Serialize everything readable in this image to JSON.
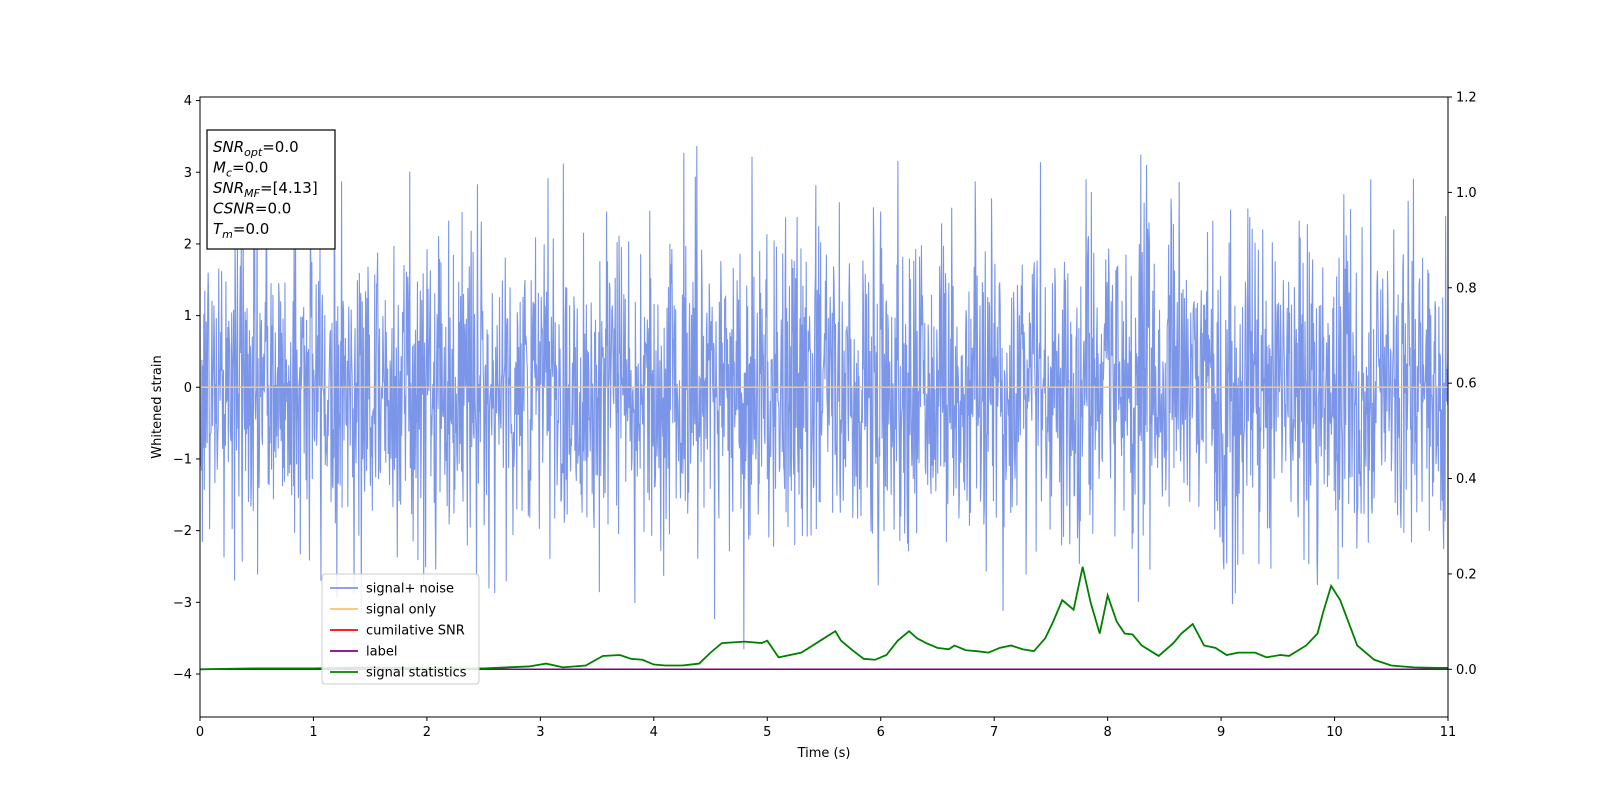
{
  "chart_data": {
    "type": "line",
    "xlabel": "Time (s)",
    "ylabel": "Whitened strain",
    "xlim": [
      0,
      11
    ],
    "ylim_left": [
      -4.6,
      4.05
    ],
    "ylim_right": [
      -0.1,
      1.2
    ],
    "xticks": [
      "0",
      "1",
      "2",
      "3",
      "4",
      "5",
      "6",
      "7",
      "8",
      "9",
      "10",
      "11"
    ],
    "yticks_left": [
      "4",
      "3",
      "2",
      "1",
      "0",
      "−1",
      "−2",
      "−3",
      "−4"
    ],
    "yticks_right": [
      "1.2",
      "1.0",
      "0.8",
      "0.6",
      "0.4",
      "0.2",
      "0.0"
    ],
    "grid": false,
    "legend_location": "lower-left",
    "legend": [
      {
        "label": "signal+ noise",
        "color": "#7b96e8"
      },
      {
        "label": "signal only",
        "color": "#f7c27a"
      },
      {
        "label": "cumilative SNR",
        "color": "#ff0000"
      },
      {
        "label": "label",
        "color": "#800080"
      },
      {
        "label": "signal statistics",
        "color": "#008000"
      }
    ],
    "annotation_lines": [
      {
        "name": "SNR",
        "sub": "opt",
        "value": "=0.0"
      },
      {
        "name": "M",
        "sub": "c",
        "value": "=0.0"
      },
      {
        "name": "SNR",
        "sub": "MF",
        "value": "=[4.13]"
      },
      {
        "name": "CSNR",
        "sub": "",
        "value": "=0.0"
      },
      {
        "name": "T",
        "sub": "m",
        "value": "=0.0"
      }
    ],
    "series": [
      {
        "name": "signal+ noise",
        "axis": "left",
        "color": "#7b96e8",
        "kind": "noise",
        "typical_range": [
          -2.0,
          2.0
        ],
        "max": 3.6,
        "min": -4.15
      },
      {
        "name": "signal only",
        "axis": "left",
        "color": "#f7c27a",
        "x": [
          0,
          11
        ],
        "y": [
          0,
          0
        ]
      },
      {
        "name": "cumilative SNR",
        "axis": "right",
        "color": "#ff0000",
        "x": [
          0,
          11
        ],
        "y": [
          0,
          0
        ]
      },
      {
        "name": "label",
        "axis": "right",
        "color": "#800080",
        "x": [
          0,
          11
        ],
        "y": [
          0,
          0
        ]
      },
      {
        "name": "signal statistics",
        "axis": "right",
        "color": "#008000",
        "x": [
          0,
          0.5,
          1.0,
          1.5,
          2.0,
          2.5,
          2.9,
          3.05,
          3.2,
          3.4,
          3.55,
          3.7,
          3.8,
          3.9,
          4.0,
          4.1,
          4.25,
          4.4,
          4.5,
          4.6,
          4.8,
          4.95,
          5.0,
          5.1,
          5.3,
          5.4,
          5.5,
          5.6,
          5.65,
          5.75,
          5.85,
          5.95,
          6.05,
          6.15,
          6.25,
          6.32,
          6.4,
          6.5,
          6.6,
          6.65,
          6.75,
          6.85,
          6.95,
          7.05,
          7.15,
          7.25,
          7.35,
          7.45,
          7.52,
          7.6,
          7.7,
          7.78,
          7.85,
          7.93,
          8.0,
          8.08,
          8.15,
          8.22,
          8.3,
          8.45,
          8.58,
          8.65,
          8.75,
          8.85,
          8.95,
          9.05,
          9.15,
          9.3,
          9.4,
          9.52,
          9.6,
          9.75,
          9.85,
          9.9,
          9.97,
          10.05,
          10.2,
          10.35,
          10.5,
          10.7,
          10.9,
          11.0
        ],
        "y": [
          0.0,
          0.002,
          0.002,
          0.004,
          0.002,
          0.002,
          0.006,
          0.012,
          0.004,
          0.008,
          0.028,
          0.03,
          0.022,
          0.02,
          0.01,
          0.008,
          0.008,
          0.012,
          0.035,
          0.055,
          0.058,
          0.055,
          0.06,
          0.025,
          0.035,
          0.05,
          0.065,
          0.08,
          0.06,
          0.04,
          0.022,
          0.02,
          0.03,
          0.06,
          0.08,
          0.065,
          0.055,
          0.045,
          0.042,
          0.05,
          0.04,
          0.038,
          0.035,
          0.045,
          0.05,
          0.042,
          0.038,
          0.065,
          0.1,
          0.145,
          0.125,
          0.215,
          0.14,
          0.075,
          0.155,
          0.1,
          0.075,
          0.073,
          0.05,
          0.028,
          0.055,
          0.075,
          0.095,
          0.05,
          0.045,
          0.03,
          0.035,
          0.035,
          0.025,
          0.03,
          0.028,
          0.05,
          0.075,
          0.12,
          0.175,
          0.145,
          0.05,
          0.02,
          0.008,
          0.004,
          0.003,
          0.003
        ]
      }
    ]
  }
}
